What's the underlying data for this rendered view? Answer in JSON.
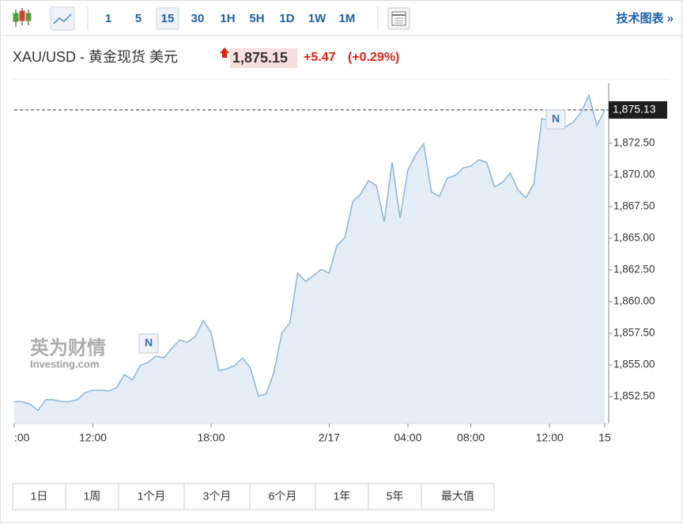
{
  "toolbar": {
    "intervals": [
      "1",
      "5",
      "15",
      "30",
      "1H",
      "5H",
      "1D",
      "1W",
      "1M"
    ],
    "link": "技术图表 »"
  },
  "header": {
    "symbol": "XAU/USD - 黄金现货 美元",
    "price": "1,875.15",
    "change": "+5.47",
    "change_pct": "(+0.29%)"
  },
  "watermark": {
    "brand": "英为财情",
    "site": "Investing.com"
  },
  "range_buttons": [
    "1日",
    "1周",
    "1个月",
    "3个月",
    "6个月",
    "1年",
    "5年",
    "最大值"
  ],
  "chart_data": {
    "type": "area",
    "categories": [
      ":00",
      null,
      null,
      null,
      null,
      null,
      null,
      null,
      null,
      null,
      "12:00",
      null,
      null,
      null,
      null,
      null,
      null,
      null,
      null,
      null,
      null,
      null,
      null,
      null,
      null,
      "18:00",
      null,
      null,
      null,
      null,
      null,
      null,
      null,
      null,
      null,
      null,
      null,
      null,
      null,
      null,
      "2/17",
      null,
      null,
      null,
      null,
      null,
      null,
      null,
      null,
      null,
      "04:00",
      null,
      null,
      null,
      null,
      null,
      null,
      null,
      "08:00",
      null,
      null,
      null,
      null,
      null,
      null,
      null,
      null,
      null,
      "12:00",
      null,
      null,
      null,
      null,
      null,
      null,
      "15"
    ],
    "values": [
      1852.1,
      1852.1,
      1851.9,
      1851.4,
      1852.25,
      1852.25,
      1852.1,
      1852.1,
      1852.25,
      1852.8,
      1853.0,
      1853.0,
      1852.95,
      1853.2,
      1854.25,
      1853.8,
      1854.95,
      1855.2,
      1855.7,
      1855.55,
      1856.3,
      1856.95,
      1856.8,
      1857.25,
      1858.5,
      1857.55,
      1854.55,
      1854.7,
      1854.95,
      1855.55,
      1854.75,
      1852.55,
      1852.7,
      1854.45,
      1857.55,
      1858.3,
      1862.25,
      1861.6,
      1862.05,
      1862.55,
      1862.25,
      1864.45,
      1865.05,
      1867.9,
      1868.5,
      1869.55,
      1869.15,
      1866.3,
      1871.0,
      1866.6,
      1870.4,
      1871.6,
      1872.45,
      1868.65,
      1868.3,
      1869.75,
      1869.95,
      1870.55,
      1870.7,
      1871.2,
      1871.0,
      1869.05,
      1869.4,
      1870.15,
      1868.8,
      1868.2,
      1869.3,
      1874.45,
      1874.3,
      1873.7,
      1873.8,
      1874.15,
      1874.95,
      1876.3,
      1873.9,
      1875.13
    ],
    "color": "#8ab4d8",
    "fill": "#e4edf6",
    "ylim": [
      1850.375,
      1877.25
    ],
    "yticks": [
      {
        "value": 1852.5,
        "label": "1,852.50"
      },
      {
        "value": 1855,
        "label": "1,855.00"
      },
      {
        "value": 1857.5,
        "label": "1,857.50"
      },
      {
        "value": 1860,
        "label": "1,860.00"
      },
      {
        "value": 1862.5,
        "label": "1,862.50"
      },
      {
        "value": 1865,
        "label": "1,865.00"
      },
      {
        "value": 1867.5,
        "label": "1,867.50"
      },
      {
        "value": 1870,
        "label": "1,870.00"
      },
      {
        "value": 1872.5,
        "label": "1,872.50"
      }
    ],
    "last_price": {
      "value": 1875.13,
      "label": "1,875.13"
    },
    "annotations": [
      "N",
      "N"
    ]
  }
}
